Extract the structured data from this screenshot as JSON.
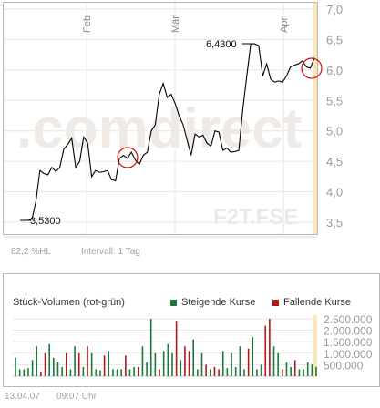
{
  "chart_data": [
    {
      "type": "line",
      "title": "",
      "x_labels": [
        "Feb",
        "Mär",
        "Apr"
      ],
      "y_ticks": [
        3.5,
        4.0,
        4.5,
        5.0,
        5.5,
        6.0,
        6.5,
        7.0
      ],
      "y_tick_labels": [
        "3,5",
        "4,0",
        "4,5",
        "5,0",
        "5,5",
        "6,0",
        "6,5",
        "7,0"
      ],
      "ylim": [
        3.3,
        7.0
      ],
      "annotations": {
        "low": "3,5300",
        "high": "6,4300"
      },
      "watermark": ".comdirect",
      "watermark2": "F2T.FSE",
      "footer_left": "82,2 %HL",
      "footer_interval": "Intervall: 1 Tag",
      "series": [
        {
          "values": [
            3.53,
            3.53,
            3.53,
            3.55,
            3.85,
            4.35,
            4.3,
            4.28,
            4.4,
            4.33,
            4.4,
            4.7,
            4.78,
            4.88,
            4.4,
            4.5,
            4.9,
            4.8,
            4.25,
            4.35,
            4.32,
            4.33,
            4.35,
            4.2,
            4.18,
            4.55,
            4.6,
            4.55,
            4.65,
            4.52,
            4.45,
            4.6,
            4.65,
            5.0,
            5.1,
            5.6,
            5.78,
            5.55,
            5.6,
            5.45,
            5.25,
            5.1,
            4.85,
            4.6,
            4.95,
            4.9,
            4.93,
            4.8,
            4.75,
            5.0,
            4.98,
            4.68,
            4.72,
            4.65,
            4.66,
            4.68,
            5.35,
            5.9,
            6.43,
            6.43,
            6.4,
            5.9,
            6.1,
            5.85,
            5.8,
            5.82,
            5.8,
            5.9,
            6.05,
            6.08,
            6.1,
            6.15,
            6.05,
            6.03,
            6.2
          ]
        }
      ]
    },
    {
      "type": "bar",
      "title": "Stück-Volumen (rot-grün)",
      "legend": [
        {
          "name": "Steigende Kurse",
          "color": "#1a7a3a"
        },
        {
          "name": "Fallende Kurse",
          "color": "#b01818"
        }
      ],
      "y_ticks": [
        500000,
        1000000,
        1500000,
        2000000,
        2500000
      ],
      "y_tick_labels": [
        "500.000",
        "1.000.000",
        "1.500.000",
        "2.000.000",
        "2.500.000"
      ],
      "ylim": [
        0,
        2700000
      ],
      "values": [
        800000,
        300000,
        300000,
        350000,
        700000,
        1300000,
        200000,
        1000000,
        1400000,
        800000,
        600000,
        400000,
        1000000,
        300000,
        1300000,
        1000000,
        400000,
        1300000,
        1000000,
        300000,
        250000,
        900000,
        1100000,
        300000,
        300000,
        300000,
        900000,
        300000,
        400000,
        400000,
        1300000,
        600000,
        2500000,
        1000000,
        300000,
        1100000,
        1400000,
        1000000,
        2400000,
        700000,
        1300000,
        1100000,
        1600000,
        300000,
        1000000,
        500000,
        300000,
        400000,
        300000,
        1100000,
        350000,
        1000000,
        400000,
        1300000,
        300000,
        1200000,
        1700000,
        300000,
        500000,
        2200000,
        2500000,
        1300000,
        1000000,
        300000,
        600000,
        400000,
        700000,
        300000,
        300000,
        600000,
        500000,
        400000
      ],
      "rising": [
        1,
        1,
        1,
        1,
        1,
        1,
        0,
        0,
        1,
        1,
        1,
        1,
        0,
        1,
        1,
        0,
        1,
        0,
        1,
        1,
        1,
        0,
        1,
        1,
        1,
        1,
        0,
        1,
        1,
        0,
        1,
        1,
        1,
        1,
        0,
        1,
        1,
        1,
        0,
        1,
        0,
        0,
        1,
        1,
        1,
        0,
        1,
        0,
        0,
        1,
        1,
        1,
        1,
        1,
        1,
        0,
        1,
        1,
        1,
        0,
        0,
        1,
        1,
        0,
        1,
        1,
        0,
        1,
        1,
        1,
        1,
        1
      ],
      "footer_date": "13.04.07",
      "footer_time": "09:07 Uhr"
    }
  ]
}
